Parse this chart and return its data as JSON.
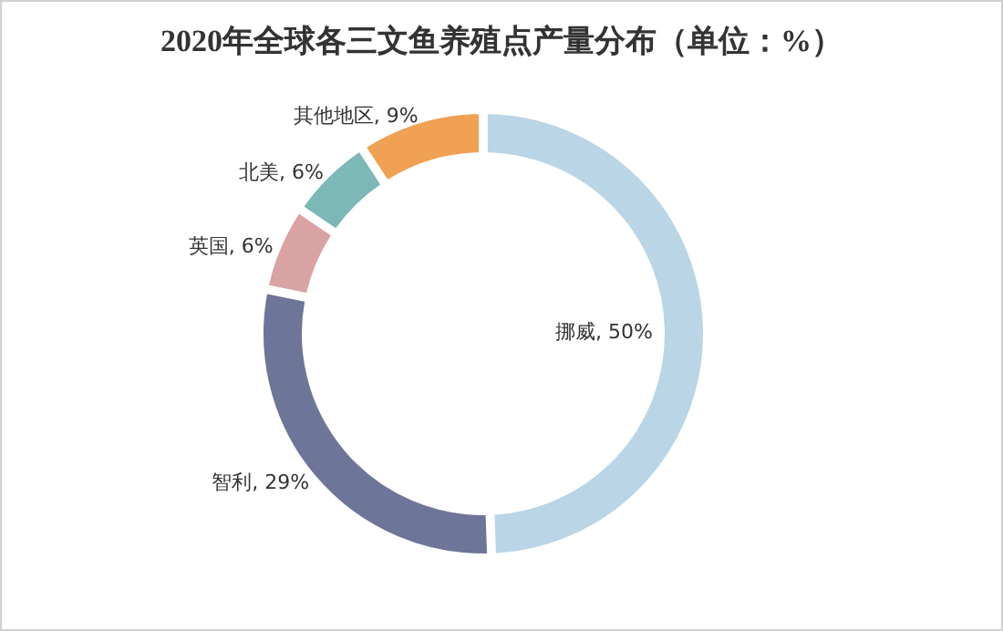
{
  "chart_data": {
    "type": "donut",
    "title": "2020年全球各三文鱼养殖点产量分布（单位：%）",
    "categories": [
      "挪威",
      "智利",
      "英国",
      "北美",
      "其他地区"
    ],
    "values": [
      50,
      29,
      6,
      6,
      9
    ],
    "colors": [
      "#b9d5e6",
      "#6d7598",
      "#d9a3a3",
      "#7bb8b6",
      "#f0a154"
    ],
    "value_labels": [
      ", 50%",
      ", 29%",
      ", 6%",
      ", 6%",
      ", 9%"
    ],
    "legend": false
  }
}
